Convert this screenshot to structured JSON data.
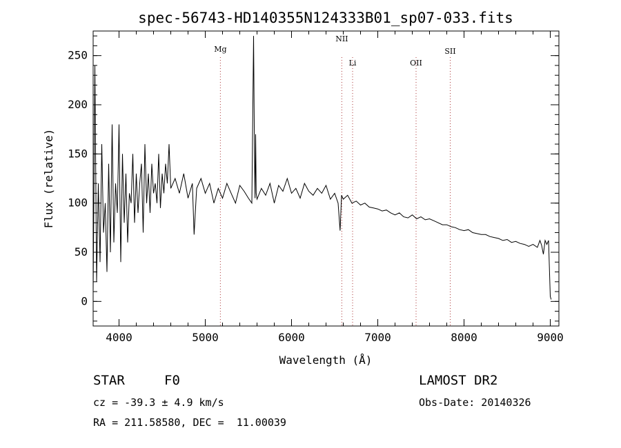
{
  "chart_data": {
    "type": "line",
    "title": "spec-56743-HD140355N124333B01_sp07-033.fits",
    "xlabel": "Wavelength (Å)",
    "ylabel": "Flux (relative)",
    "xlim": [
      3700,
      9100
    ],
    "ylim": [
      -25,
      275
    ],
    "xticks": [
      4000,
      5000,
      6000,
      7000,
      8000,
      9000
    ],
    "yticks": [
      0,
      50,
      100,
      150,
      200,
      250
    ],
    "series": [
      {
        "x": [
          3700,
          3720,
          3740,
          3760,
          3780,
          3800,
          3820,
          3840,
          3860,
          3880,
          3900,
          3920,
          3940,
          3960,
          3980,
          4000,
          4020,
          4040,
          4060,
          4080,
          4100,
          4120,
          4140,
          4160,
          4180,
          4200,
          4220,
          4240,
          4260,
          4280,
          4300,
          4320,
          4340,
          4360,
          4380,
          4400,
          4420,
          4440,
          4460,
          4480,
          4500,
          4520,
          4540,
          4560,
          4580,
          4600,
          4650,
          4700,
          4750,
          4800,
          4850,
          4870,
          4900,
          4950,
          5000,
          5050,
          5100,
          5150,
          5200,
          5250,
          5300,
          5350,
          5400,
          5450,
          5500,
          5540,
          5560,
          5570,
          5577,
          5584,
          5590,
          5600,
          5650,
          5700,
          5750,
          5800,
          5850,
          5900,
          5950,
          6000,
          6050,
          6100,
          6150,
          6200,
          6250,
          6300,
          6350,
          6400,
          6450,
          6500,
          6540,
          6563,
          6580,
          6600,
          6650,
          6700,
          6750,
          6800,
          6850,
          6900,
          6950,
          7000,
          7050,
          7100,
          7150,
          7200,
          7250,
          7300,
          7350,
          7400,
          7450,
          7500,
          7550,
          7600,
          7650,
          7700,
          7750,
          7800,
          7850,
          7900,
          7950,
          8000,
          8050,
          8100,
          8150,
          8200,
          8250,
          8300,
          8350,
          8400,
          8450,
          8500,
          8550,
          8600,
          8650,
          8700,
          8750,
          8800,
          8850,
          8880,
          8900,
          8920,
          8940,
          8960,
          8980,
          9000,
          9010
        ],
        "values": [
          10,
          240,
          20,
          120,
          40,
          160,
          70,
          100,
          30,
          140,
          50,
          180,
          60,
          120,
          90,
          180,
          40,
          150,
          80,
          130,
          60,
          110,
          100,
          150,
          80,
          130,
          90,
          120,
          140,
          70,
          160,
          100,
          130,
          90,
          140,
          110,
          120,
          100,
          150,
          95,
          130,
          110,
          140,
          120,
          160,
          115,
          125,
          110,
          130,
          105,
          120,
          68,
          115,
          125,
          110,
          120,
          100,
          115,
          105,
          120,
          110,
          100,
          118,
          112,
          105,
          100,
          270,
          150,
          105,
          170,
          110,
          104,
          115,
          108,
          120,
          100,
          118,
          112,
          125,
          110,
          115,
          105,
          120,
          112,
          108,
          115,
          110,
          118,
          104,
          110,
          100,
          72,
          108,
          104,
          108,
          100,
          102,
          98,
          100,
          96,
          95,
          94,
          92,
          93,
          90,
          88,
          90,
          86,
          85,
          88,
          84,
          86,
          83,
          84,
          82,
          80,
          78,
          78,
          76,
          75,
          73,
          72,
          73,
          70,
          69,
          68,
          68,
          66,
          65,
          64,
          62,
          63,
          60,
          61,
          59,
          58,
          56,
          58,
          55,
          62,
          57,
          48,
          62,
          58,
          62,
          5,
          2
        ],
        "color": "#000000"
      }
    ],
    "spectral_lines": [
      {
        "label": "Mg",
        "x": 5175
      },
      {
        "label": "NII",
        "x": 6583
      },
      {
        "label": "Li",
        "x": 6708
      },
      {
        "label": "OII",
        "x": 7444
      },
      {
        "label": "SII",
        "x": 7840
      }
    ]
  },
  "info": {
    "object_class": "STAR",
    "subclass": "F0",
    "survey": "LAMOST DR2",
    "cz": "cz = -39.3 ± 4.9 km/s",
    "obs_date": "Obs-Date: 20140326",
    "coords": "RA = 211.58580, DEC =  11.00039"
  }
}
